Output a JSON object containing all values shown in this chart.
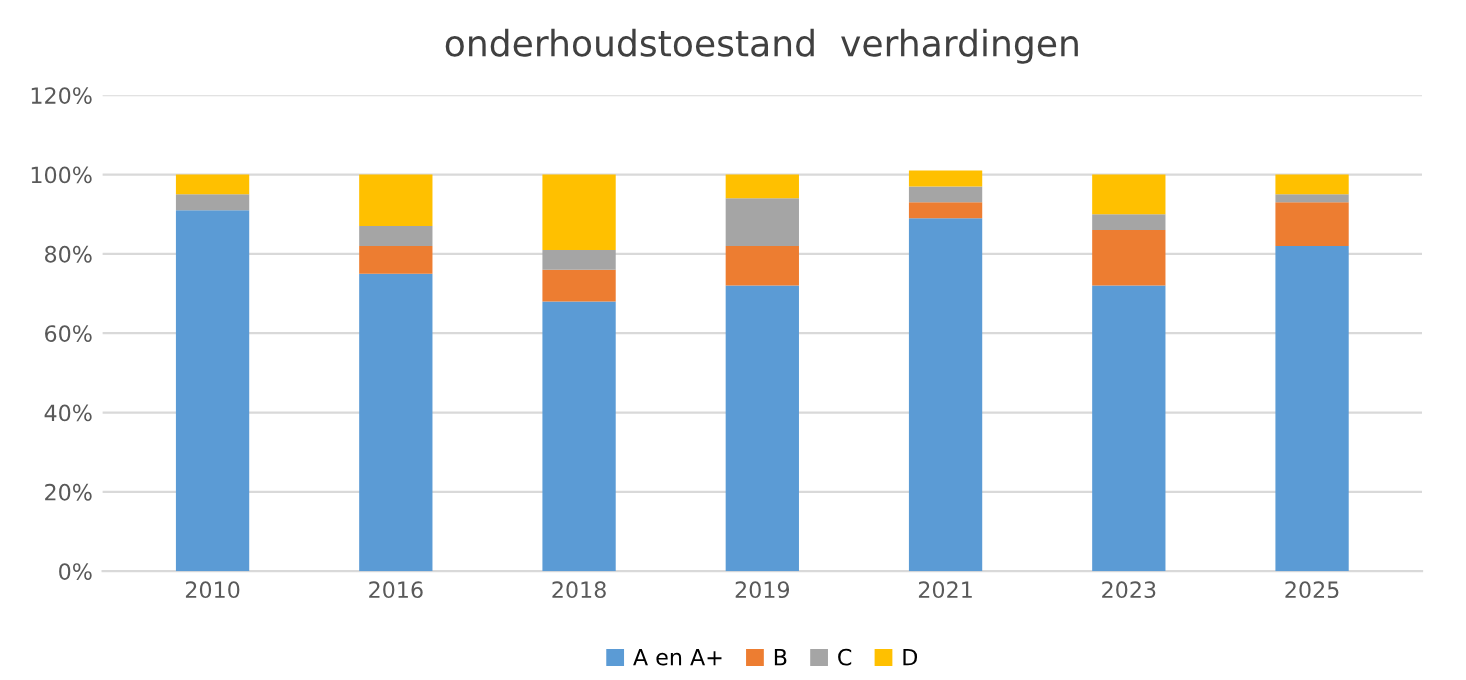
{
  "chart_data": {
    "type": "bar",
    "title": "onderhoudstoestand  verhardingen",
    "stacked": true,
    "categories": [
      "2010",
      "2016",
      "2018",
      "2019",
      "2021",
      "2023",
      "2025"
    ],
    "series": [
      {
        "name": "A en A+",
        "color": "#5b9bd5",
        "values": [
          91,
          75,
          68,
          72,
          89,
          72,
          82
        ]
      },
      {
        "name": "B",
        "color": "#ed7d31",
        "values": [
          0,
          7,
          8,
          10,
          4,
          14,
          11
        ]
      },
      {
        "name": "C",
        "color": "#a5a5a5",
        "values": [
          4,
          5,
          5,
          12,
          4,
          4,
          2
        ]
      },
      {
        "name": "D",
        "color": "#ffc000",
        "values": [
          5,
          13,
          19,
          6,
          4,
          10,
          5
        ]
      }
    ],
    "ylim": [
      0,
      120
    ],
    "yticks": [
      {
        "value": 0,
        "label": "0%"
      },
      {
        "value": 20,
        "label": "20%"
      },
      {
        "value": 40,
        "label": "40%"
      },
      {
        "value": 60,
        "label": "60%"
      },
      {
        "value": 80,
        "label": "80%"
      },
      {
        "value": 100,
        "label": "100%"
      },
      {
        "value": 120,
        "label": "120%"
      }
    ],
    "grid": "y",
    "legend": "bottom"
  }
}
